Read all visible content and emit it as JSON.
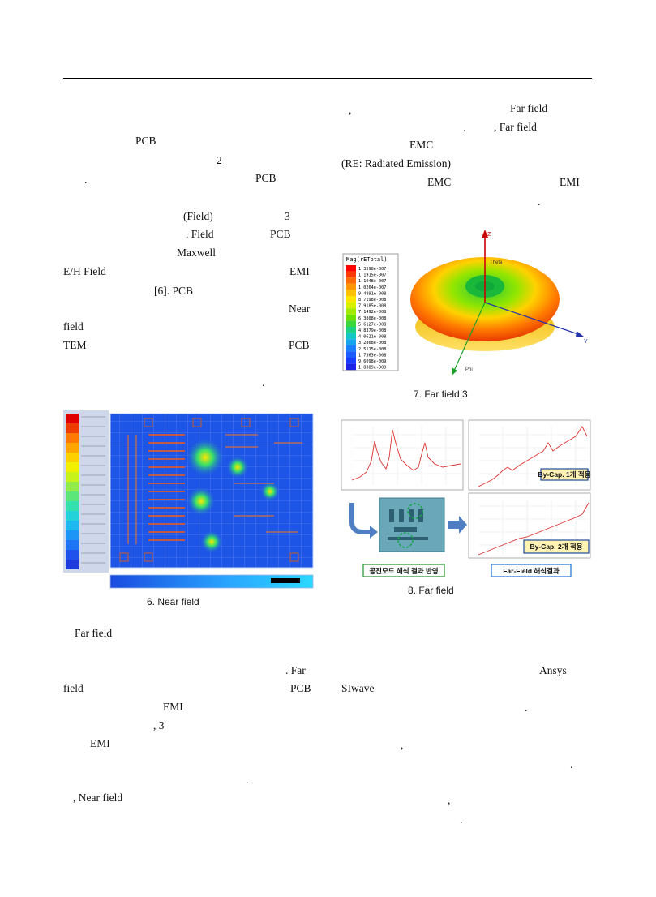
{
  "left_column": [
    {
      "id": "l1",
      "text": "PCB"
    },
    {
      "id": "l2",
      "text": "2"
    },
    {
      "id": "l3",
      "text": "."
    },
    {
      "id": "l4",
      "text": "PCB"
    },
    {
      "id": "l5",
      "text": "(Field)"
    },
    {
      "id": "l6",
      "text": "3"
    },
    {
      "id": "l7",
      "text": ".  Field"
    },
    {
      "id": "l8",
      "text": "PCB"
    },
    {
      "id": "l9",
      "text": "Maxwell"
    },
    {
      "id": "l10",
      "text": "E/H  Field"
    },
    {
      "id": "l11",
      "text": "EMI"
    },
    {
      "id": "l12",
      "text": "[6].  PCB"
    },
    {
      "id": "l13",
      "text": "Near"
    },
    {
      "id": "l14",
      "text": "field"
    },
    {
      "id": "l15",
      "text": "TEM"
    },
    {
      "id": "l16",
      "text": "PCB"
    },
    {
      "id": "l17",
      "text": "."
    }
  ],
  "right_column": [
    {
      "id": "r1",
      "text": ","
    },
    {
      "id": "r2",
      "text": "Far  field"
    },
    {
      "id": "r3",
      "text": "."
    },
    {
      "id": "r4",
      "text": ",  Far   field"
    },
    {
      "id": "r5",
      "text": "EMC"
    },
    {
      "id": "r6",
      "text": "(RE:  Radiated  Emission)"
    },
    {
      "id": "r7",
      "text": "EMC"
    },
    {
      "id": "r8",
      "text": "EMI"
    },
    {
      "id": "r9",
      "text": "."
    }
  ],
  "lower_left": [
    {
      "id": "b1",
      "text": "Far  field"
    },
    {
      "id": "b2",
      "text": ".  Far"
    },
    {
      "id": "b3",
      "text": "field"
    },
    {
      "id": "b4",
      "text": "PCB"
    },
    {
      "id": "b5",
      "text": "EMI"
    },
    {
      "id": "b6",
      "text": ",  3"
    },
    {
      "id": "b7",
      "text": "EMI"
    },
    {
      "id": "b8",
      "text": "."
    },
    {
      "id": "b9",
      "text": ",  Near  field"
    }
  ],
  "lower_right": [
    {
      "id": "c1",
      "text": "Ansys"
    },
    {
      "id": "c2",
      "text": "SIwave"
    },
    {
      "id": "c3",
      "text": "."
    },
    {
      "id": "c4",
      "text": ","
    },
    {
      "id": "c5",
      "text": "."
    },
    {
      "id": "c6",
      "text": ","
    },
    {
      "id": "c7",
      "text": "."
    }
  ],
  "fig6": {
    "caption": "6.  Near  field"
  },
  "fig7": {
    "caption": "7.  Far  field  3",
    "legend_title": "Mag(rETotal)",
    "legend_values": [
      "1.3598e-007",
      "1.1915e-007",
      "1.1048e-007",
      "1.0264e-007",
      "9.4891e-008",
      "8.7198e-008",
      "7.9185e-008",
      "7.1492e-008",
      "6.3808e-008",
      "5.6127e-008",
      "4.8379e-008",
      "4.0621e-008",
      "3.2868e-008",
      "2.5115e-008",
      "1.7363e-008",
      "9.6098e-009",
      "1.8389e-009"
    ],
    "axis_z": "Z",
    "axis_y": "Y",
    "label_theta": "Theta",
    "label_phi": "Phi"
  },
  "fig8": {
    "caption": "8.  Far  field",
    "label_cap1": "By-Cap. 1개 적용",
    "label_cap2": "By-Cap. 2개 적용",
    "label_resonance": "공진모드 해석 결과 반영",
    "label_farfield": "Far-Field 해석결과"
  },
  "colors": {
    "accent_blue": "#2f6fb7",
    "mini_box_bg": "#fff2b3",
    "mini_box_border": "#1f4e96",
    "result_green": "#2e9b34",
    "result_blue": "#2a7bd8"
  }
}
